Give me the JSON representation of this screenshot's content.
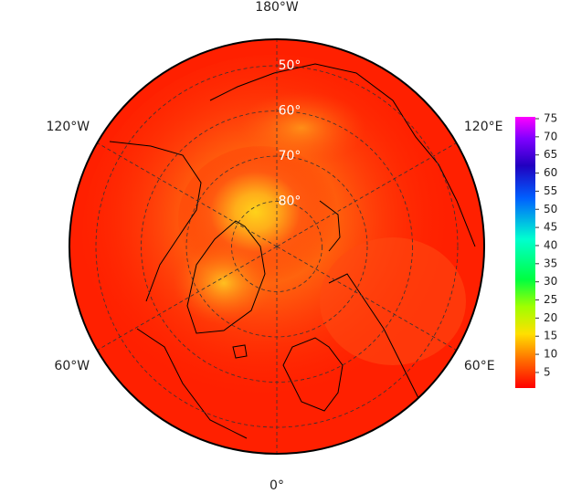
{
  "map": {
    "lon_labels": [
      {
        "value": 180,
        "label": "180°W"
      },
      {
        "value": 120,
        "label": "120°E"
      },
      {
        "value": 60,
        "label": "60°E"
      },
      {
        "value": 0,
        "label": "0°"
      },
      {
        "value": -60,
        "label": "60°W"
      },
      {
        "value": -120,
        "label": "120°W"
      }
    ],
    "lat_labels": [
      {
        "value": 50,
        "label": "50°"
      },
      {
        "value": 60,
        "label": "60°"
      },
      {
        "value": 70,
        "label": "70°"
      },
      {
        "value": 80,
        "label": "80°"
      }
    ],
    "colorbar": {
      "range": [
        0.7,
        75.5
      ],
      "ticks": [
        5,
        10,
        15,
        20,
        25,
        30,
        35,
        40,
        45,
        50,
        55,
        60,
        65,
        70,
        75
      ]
    }
  }
}
